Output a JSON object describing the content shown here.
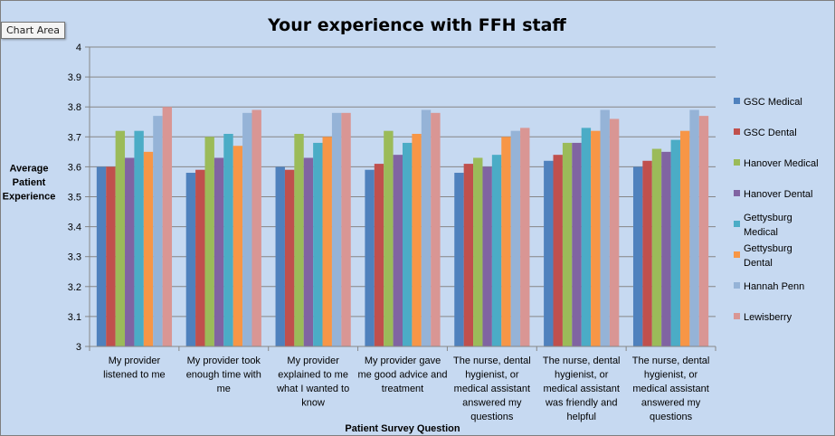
{
  "tooltip": "Chart Area",
  "colors": [
    "#4f81bd",
    "#c0504d",
    "#9bbb59",
    "#8064a2",
    "#4bacc6",
    "#f79646",
    "#95b3d7",
    "#d99694"
  ],
  "chart_data": {
    "type": "bar",
    "title": "Your experience with FFH staff",
    "xlabel": "Patient Survey Question",
    "ylabel": "Average Patient Experience",
    "ylim": [
      3,
      4
    ],
    "yticks": [
      "3",
      "3.1",
      "3.2",
      "3.3",
      "3.4",
      "3.5",
      "3.6",
      "3.7",
      "3.8",
      "3.9",
      "4"
    ],
    "grid": true,
    "legend_position": "right",
    "categories": [
      "My provider listened to me",
      "My provider took enough time with me",
      "My provider explained to me what I wanted to know",
      "My provider gave me good advice and treatment",
      "The nurse, dental hygienist, or medical assistant answered my questions",
      "The nurse, dental hygienist, or medical assistant was friendly and helpful",
      "The nurse, dental hygienist, or medical assistant answered my questions"
    ],
    "series": [
      {
        "name": "GSC Medical",
        "values": [
          3.6,
          3.58,
          3.6,
          3.59,
          3.58,
          3.62,
          3.6
        ]
      },
      {
        "name": "GSC Dental",
        "values": [
          3.6,
          3.59,
          3.59,
          3.61,
          3.61,
          3.64,
          3.62
        ]
      },
      {
        "name": "Hanover Medical",
        "values": [
          3.72,
          3.7,
          3.71,
          3.72,
          3.63,
          3.68,
          3.66
        ]
      },
      {
        "name": "Hanover Dental",
        "values": [
          3.63,
          3.63,
          3.63,
          3.64,
          3.6,
          3.68,
          3.65
        ]
      },
      {
        "name": "Gettysburg Medical",
        "values": [
          3.72,
          3.71,
          3.68,
          3.68,
          3.64,
          3.73,
          3.69
        ]
      },
      {
        "name": "Gettysburg Dental",
        "values": [
          3.65,
          3.67,
          3.7,
          3.71,
          3.7,
          3.72,
          3.72
        ]
      },
      {
        "name": "Hannah Penn",
        "values": [
          3.77,
          3.78,
          3.78,
          3.79,
          3.72,
          3.79,
          3.79
        ]
      },
      {
        "name": "Lewisberry",
        "values": [
          3.8,
          3.79,
          3.78,
          3.78,
          3.73,
          3.76,
          3.77
        ]
      }
    ]
  }
}
